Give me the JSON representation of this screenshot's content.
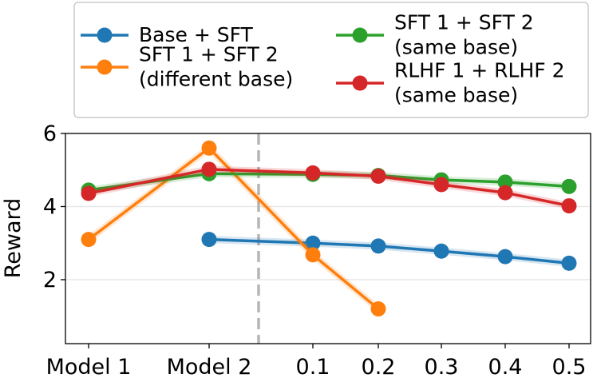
{
  "chart_data": {
    "type": "line",
    "title": "",
    "xlabel": "",
    "ylabel": "Reward",
    "ylim": [
      0.25,
      6.0
    ],
    "yticks": [
      2,
      4,
      6
    ],
    "grid": "horizontal",
    "categories": [
      "Model 1",
      "Model 2",
      "0.1",
      "0.2",
      "0.3",
      "0.4",
      "0.5"
    ],
    "divider_after_category": "Model 2",
    "legend_position": "top, above plot, two columns",
    "series": [
      {
        "name": "Base + SFT",
        "color": "#1f77b4",
        "values": [
          null,
          3.1,
          3.0,
          2.92,
          2.78,
          2.63,
          2.45
        ]
      },
      {
        "name": "SFT 1 + SFT 2\n(different base)",
        "color": "#ff7f0e",
        "values": [
          3.1,
          5.6,
          2.68,
          1.2,
          null,
          null,
          null
        ]
      },
      {
        "name": "SFT 1 + SFT 2\n(same base)",
        "color": "#2ca02c",
        "values": [
          4.45,
          4.9,
          4.88,
          4.85,
          4.73,
          4.67,
          4.55
        ]
      },
      {
        "name": "RLHF 1 + RLHF 2\n(same base)",
        "color": "#d62728",
        "values": [
          4.36,
          5.02,
          4.92,
          4.83,
          4.6,
          4.38,
          4.02
        ]
      }
    ]
  }
}
